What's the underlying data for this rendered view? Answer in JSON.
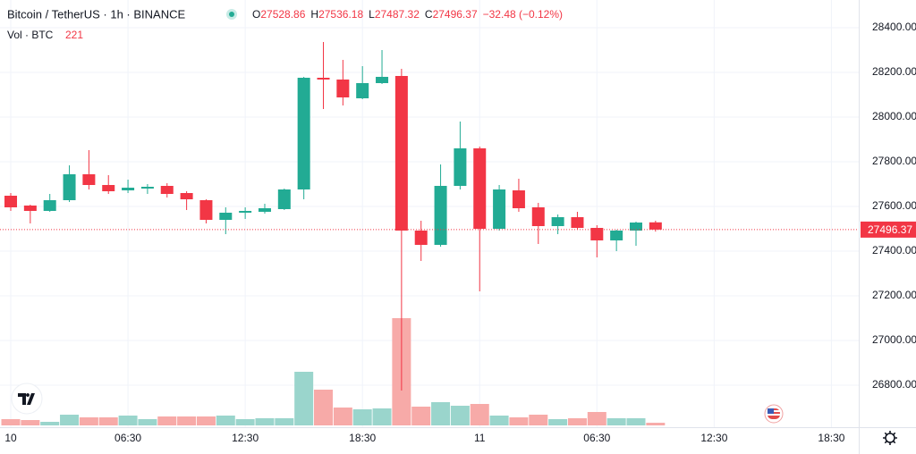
{
  "chart_data": {
    "type": "candlestick",
    "title": "Bitcoin / TetherUS · 1h · BINANCE",
    "ohlc_labels": [
      "O",
      "H",
      "L",
      "C"
    ],
    "change": "−32.48 (−0.12%)",
    "volume_label": "Vol · BTC",
    "x": [
      0,
      1,
      2,
      3,
      4,
      5,
      6,
      7,
      8,
      9,
      10,
      11,
      12,
      13,
      14,
      15,
      16,
      17,
      18,
      19,
      20,
      21,
      22,
      23,
      24,
      25,
      26,
      27,
      28,
      29,
      30,
      31,
      32,
      33
    ],
    "xlim": [
      -0.55,
      43.4
    ],
    "xticks": [
      {
        "value": 0,
        "label": "10"
      },
      {
        "value": 6,
        "label": "06:30"
      },
      {
        "value": 12,
        "label": "12:30"
      },
      {
        "value": 18,
        "label": "18:30"
      },
      {
        "value": 24,
        "label": "11"
      },
      {
        "value": 30,
        "label": "06:30"
      },
      {
        "value": 36,
        "label": "12:30"
      },
      {
        "value": 42,
        "label": "18:30"
      }
    ],
    "open": [
      27648,
      27604,
      27580,
      27628,
      27744,
      27696,
      27672,
      27680,
      27692,
      27660,
      27628,
      27540,
      27572,
      27576,
      27588,
      27676,
      28176,
      28168,
      28084,
      28152,
      28184,
      27492,
      27428,
      27692,
      27860,
      27500,
      27672,
      27596,
      27512,
      27552,
      27504,
      27448,
      27492,
      27528.86
    ],
    "high": [
      27660,
      27608,
      27656,
      27784,
      27852,
      27740,
      27720,
      27700,
      27704,
      27668,
      27632,
      27596,
      27596,
      27612,
      27680,
      28180,
      28336,
      28256,
      28228,
      28300,
      28216,
      27536,
      27788,
      27980,
      27868,
      27696,
      27724,
      27616,
      27564,
      27576,
      27516,
      27496,
      27532,
      27536.18
    ],
    "low": [
      27580,
      27524,
      27576,
      27620,
      27676,
      27656,
      27660,
      27656,
      27640,
      27584,
      27524,
      27476,
      27544,
      27568,
      27584,
      27632,
      28036,
      28052,
      28080,
      28148,
      26776,
      27356,
      27420,
      27676,
      27220,
      27492,
      27576,
      27432,
      27476,
      27496,
      27372,
      27400,
      27424,
      27487.32
    ],
    "close": [
      27596,
      27580,
      27628,
      27744,
      27696,
      27668,
      27684,
      27688,
      27656,
      27632,
      27540,
      27572,
      27580,
      27592,
      27676,
      28176,
      28168,
      28088,
      28152,
      28180,
      27492,
      27428,
      27692,
      27860,
      27500,
      27676,
      27592,
      27512,
      27552,
      27504,
      27448,
      27492,
      27528,
      27496.37
    ],
    "volume": [
      525,
      450,
      300,
      900,
      675,
      675,
      825,
      525,
      750,
      750,
      750,
      825,
      525,
      600,
      600,
      4500,
      3000,
      1500,
      1350,
      1425,
      9000,
      1575,
      1950,
      1650,
      1800,
      825,
      675,
      900,
      525,
      600,
      1125,
      600,
      600,
      221
    ],
    "ylim": [
      26612,
      28524
    ],
    "yticks": [
      {
        "value": 26800,
        "label": "26800.00"
      },
      {
        "value": 27000,
        "label": "27000.00"
      },
      {
        "value": 27200,
        "label": "27200.00"
      },
      {
        "value": 27400,
        "label": "27400.00"
      },
      {
        "value": 27600,
        "label": "27600.00"
      },
      {
        "value": 27800,
        "label": "27800.00"
      },
      {
        "value": 28000,
        "label": "28000.00"
      },
      {
        "value": 28200,
        "label": "28200.00"
      },
      {
        "value": 28400,
        "label": "28400.00"
      }
    ],
    "vlim": [
      0,
      35700
    ],
    "up_color": "#22ab94",
    "down_color": "#f23645",
    "volume_up_color": "#9ad5cc",
    "volume_down_color": "#f7aaa8",
    "grid": true
  }
}
